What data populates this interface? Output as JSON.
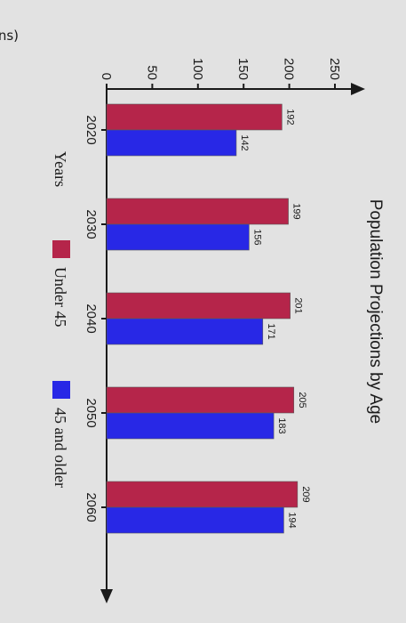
{
  "chart_data": {
    "type": "bar",
    "title": "Population Projections by Age",
    "ylabel": "Population (in millions)",
    "xlabel": "Years",
    "categories": [
      "2020",
      "2030",
      "2040",
      "2050",
      "2060"
    ],
    "series": [
      {
        "name": "Under 45",
        "values": [
          192,
          199,
          201,
          205,
          209
        ],
        "color": "#b5254a"
      },
      {
        "name": "45 and older",
        "values": [
          142,
          156,
          171,
          183,
          194
        ],
        "color": "#2828e6"
      }
    ],
    "yticks": [
      "0",
      "50",
      "100",
      "150",
      "200",
      "250"
    ],
    "ylim": [
      0,
      250
    ],
    "grid": false,
    "orientation": "rotated 90 degrees clockwise",
    "legend": "bottom"
  }
}
